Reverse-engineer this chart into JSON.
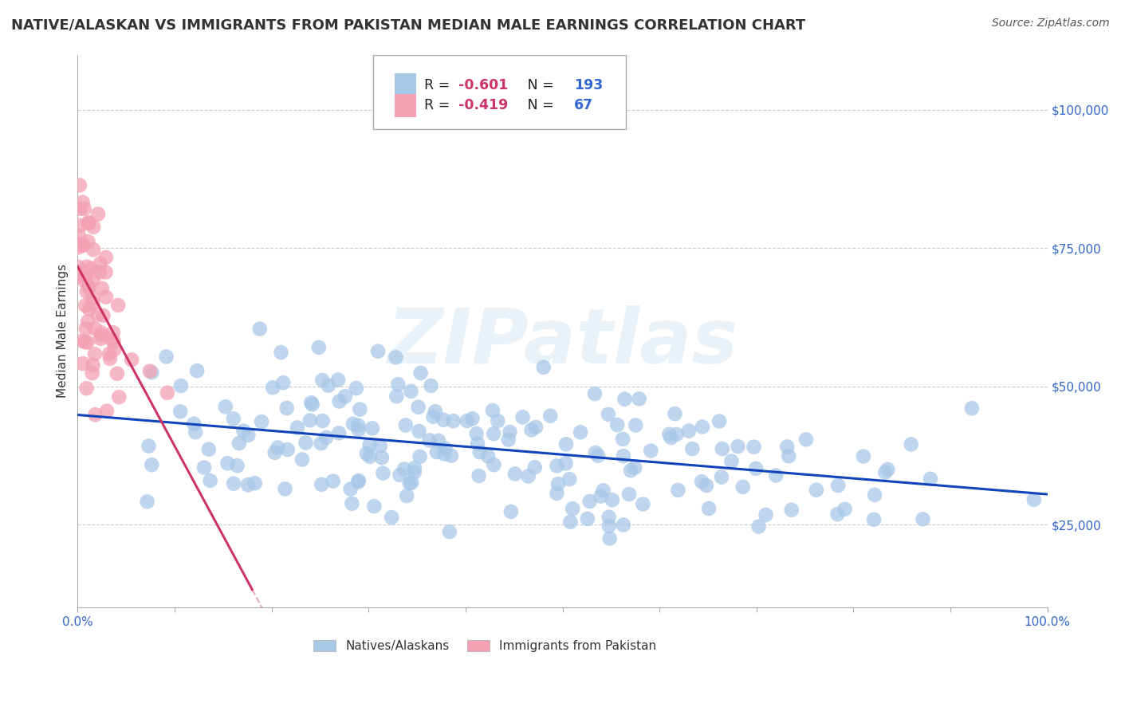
{
  "title": "NATIVE/ALASKAN VS IMMIGRANTS FROM PAKISTAN MEDIAN MALE EARNINGS CORRELATION CHART",
  "source": "Source: ZipAtlas.com",
  "ylabel": "Median Male Earnings",
  "watermark": "ZIPatlas",
  "blue_R": -0.601,
  "blue_N": 193,
  "pink_R": -0.419,
  "pink_N": 67,
  "blue_color": "#a8c8e8",
  "pink_color": "#f4a0b5",
  "blue_line_color": "#1144bb",
  "pink_line_color": "#cc3366",
  "pink_line_dashed_color": "#e8aabb",
  "axis_color": "#3366cc",
  "ytick_labels": [
    "$25,000",
    "$50,000",
    "$75,000",
    "$100,000"
  ],
  "ytick_values": [
    25000,
    50000,
    75000,
    100000
  ],
  "xlim": [
    0.0,
    1.0
  ],
  "ylim": [
    10000,
    110000
  ],
  "background_color": "#ffffff",
  "grid_color": "#cccccc",
  "title_color": "#333333",
  "title_fontsize": 13.0,
  "ylabel_fontsize": 11,
  "source_fontsize": 10,
  "legend_fontsize": 12,
  "tick_label_fontsize": 11,
  "xtick_labels": [
    "0.0%",
    "100.0%"
  ],
  "watermark_color": "#b8d4ec",
  "watermark_fontsize": 70,
  "watermark_alpha": 0.3,
  "legend_box_label1": "R = -0.601   N = 193",
  "legend_box_label2": "R = -0.419   N =  67",
  "bottom_legend_blue": "Natives/Alaskans",
  "bottom_legend_pink": "Immigrants from Pakistan"
}
